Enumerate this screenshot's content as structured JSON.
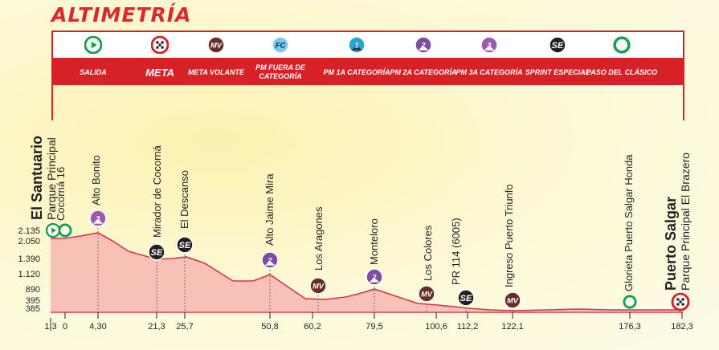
{
  "title": "ALTIMETRÍA",
  "legend": [
    {
      "label": "SALIDA",
      "icon": "start-icon",
      "big": false
    },
    {
      "label": "META",
      "icon": "finish-flag-icon",
      "big": true
    },
    {
      "label": "META VOLANTE",
      "icon": "mv-icon",
      "big": false
    },
    {
      "label": "PM FUERA DE CATEGORÍA",
      "icon": "fc-icon",
      "big": false
    },
    {
      "label": "PM 1A CATEGORÍA",
      "icon": "cat1-icon",
      "big": false
    },
    {
      "label": "PM 2A CATEGORÍA",
      "icon": "cat2-icon",
      "big": false
    },
    {
      "label": "PM 3A CATEGORÍA",
      "icon": "cat3-icon",
      "big": false
    },
    {
      "label": "SPRINT ESPECIAL",
      "icon": "se-icon",
      "big": false
    },
    {
      "label": "PASO DEL CLÁSICO",
      "icon": "paso-icon",
      "big": false
    }
  ],
  "icon_text": {
    "mv": "MV",
    "fc": "FC",
    "se": "SE",
    "cat1": "1",
    "cat2": "2",
    "cat3": "3"
  },
  "colors": {
    "red": "#d82027",
    "profile_fill": "#f6b7b2",
    "profile_line": "#d6324a",
    "purple": "#7b4ea3",
    "brown": "#6b2b26",
    "green": "#15a04a",
    "dark": "#231f20"
  },
  "chart_data": {
    "type": "area",
    "ylabel_ticks": [
      "2.135",
      "2.050",
      "1.390",
      "1.120",
      "890",
      "395",
      "385"
    ],
    "xlabel_ticks": [
      "1,3",
      "0",
      "4,30",
      "21,3",
      "25,7",
      "50,8",
      "60,2",
      "79,5",
      "100,6",
      "112,2",
      "122,1",
      "176,3",
      "182,3"
    ],
    "places": [
      {
        "name": "El Santuario",
        "sub": "Parque Principal",
        "km": "1,3",
        "marker": "start",
        "style": "big"
      },
      {
        "name": "Cocorná 16",
        "km": "0",
        "marker": "paso",
        "style": "normal"
      },
      {
        "name": "Alto Bonito",
        "km": "4,30",
        "marker": "cat3",
        "style": "normal"
      },
      {
        "name": "Mirador de Cocorná",
        "km": "21,3",
        "marker": "se",
        "style": "normal"
      },
      {
        "name": "El Descanso",
        "km": "25,7",
        "marker": "se",
        "style": "normal"
      },
      {
        "name": "Alto Jaime Mira",
        "km": "50,8",
        "marker": "cat2",
        "style": "normal"
      },
      {
        "name": "Los Aragones",
        "km": "60,2",
        "marker": "mv",
        "style": "normal"
      },
      {
        "name": "Monteloro",
        "km": "79,5",
        "marker": "cat2",
        "style": "normal"
      },
      {
        "name": "Los Colores",
        "km": "100,6",
        "marker": "mv",
        "style": "normal"
      },
      {
        "name": "PR 114  (6005)",
        "km": "112,2",
        "marker": "se",
        "style": "normal"
      },
      {
        "name": "Ingreso Puerto Triunfo",
        "km": "122,1",
        "marker": "mv",
        "style": "normal"
      },
      {
        "name": "Glorieta Puerto Salgar Honda",
        "km": "176,3",
        "marker": "paso",
        "style": "normal"
      },
      {
        "name": "Puerto Salgar",
        "sub": "Parque Principal El Brazero",
        "km": "182,3",
        "marker": "finish",
        "style": "big"
      }
    ]
  }
}
